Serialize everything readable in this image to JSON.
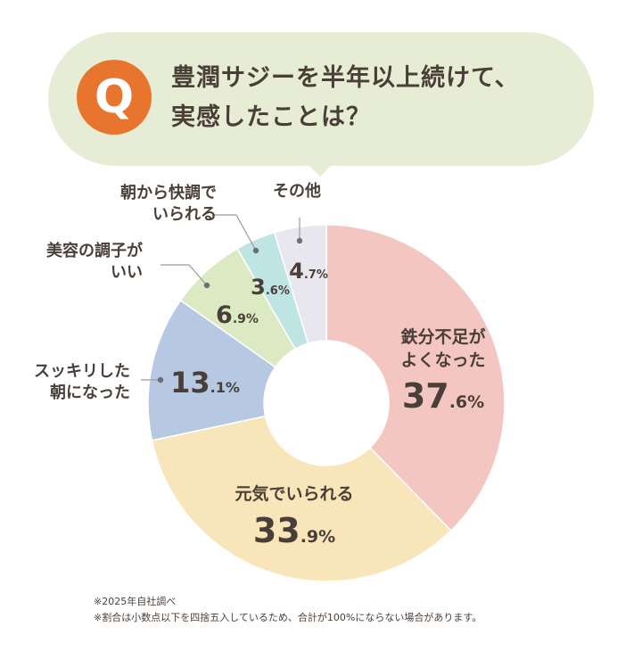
{
  "question": {
    "badge": "Q",
    "line1": "豊潤サジーを半年以上続けて、",
    "line2": "実感したことは？"
  },
  "chart_data": {
    "type": "pie",
    "donut": true,
    "slices": [
      {
        "label": [
          "鉄分不足が",
          "よくなった"
        ],
        "value": 37.6,
        "int": "37",
        "dec": ".6%",
        "color": "#f4c6c1"
      },
      {
        "label": [
          "元気でいられる"
        ],
        "value": 33.9,
        "int": "33",
        "dec": ".9%",
        "color": "#f8e5b9"
      },
      {
        "label": [
          "スッキリした",
          "朝になった"
        ],
        "value": 13.1,
        "int": "13",
        "dec": ".1%",
        "color": "#b6c8e2"
      },
      {
        "label": [
          "美容の調子が",
          "いい"
        ],
        "value": 6.9,
        "int": "6",
        "dec": ".9%",
        "color": "#dceac4"
      },
      {
        "label": [
          "朝から快調で",
          "いられる"
        ],
        "value": 3.6,
        "int": "3",
        "dec": ".6%",
        "color": "#bfe4e4"
      },
      {
        "label": [
          "その他"
        ],
        "value": 4.7,
        "int": "4",
        "dec": ".7%",
        "color": "#e8e6ef"
      }
    ],
    "start_angle_deg": 0,
    "direction": "clockwise"
  },
  "colors": {
    "text": "#4a3f38",
    "bubble": "#e7edd4",
    "badge": "#e8752d",
    "leader": "#9a9a9a"
  },
  "notes": {
    "line1": "※2025年自社調べ",
    "line2": "※割合は小数点以下を四捨五入しているため、合計が100%にならない場合があります。"
  }
}
